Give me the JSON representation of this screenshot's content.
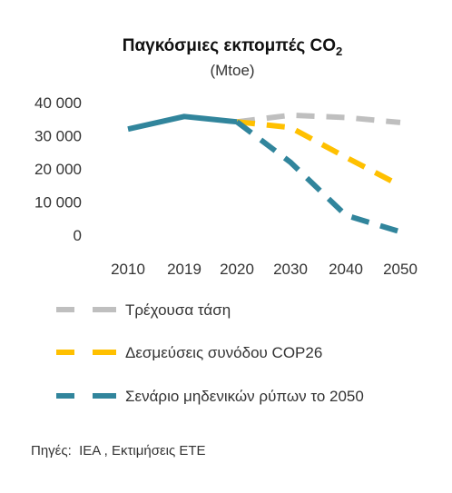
{
  "chart_data": {
    "type": "line",
    "title_main": "Παγκόσμιες εκπομπές CO",
    "title_sub": "2",
    "subtitle": "(Mtoe)",
    "categories": [
      "2010",
      "2019",
      "2020",
      "2030",
      "2040",
      "2050"
    ],
    "yticks": [
      "40 000",
      "30 000",
      "20 000",
      "10 000",
      "0"
    ],
    "ylim": [
      0,
      40000
    ],
    "grid": false,
    "legend_position": "bottom",
    "history": {
      "values": [
        32000,
        35800,
        34200
      ],
      "color": "#31859C"
    },
    "series": [
      {
        "name": "Τρέχουσα τάση",
        "color": "#BFBFBF",
        "dashed": true,
        "values": [
          null,
          null,
          34200,
          36200,
          35500,
          34000
        ]
      },
      {
        "name": "Δεσμεύσεις συνόδου COP26",
        "color": "#FFC000",
        "dashed": true,
        "values": [
          null,
          null,
          34200,
          32500,
          23500,
          15000
        ]
      },
      {
        "name": "Σενάριο μηδενικών ρύπων το 2050",
        "color": "#31859C",
        "dashed": true,
        "values": [
          null,
          null,
          34200,
          22000,
          6000,
          1000
        ]
      }
    ]
  },
  "source_text": "Πηγές:  IEA , Εκτιμήσεις ΕΤΕ"
}
